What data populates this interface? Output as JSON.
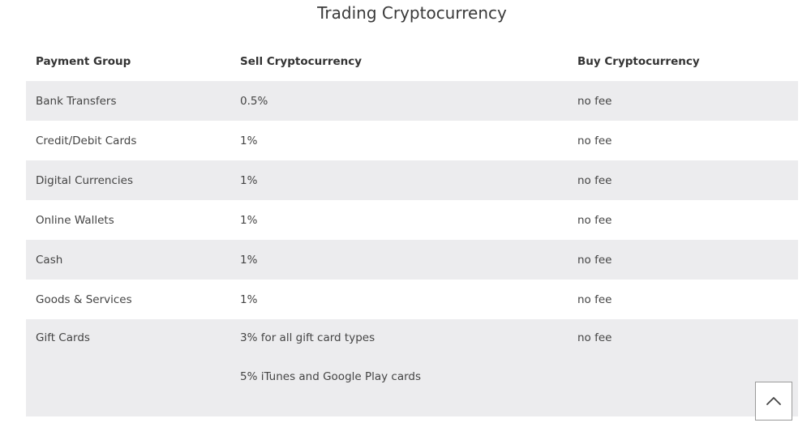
{
  "title": "Trading Cryptocurrency",
  "table": {
    "headers": [
      "Payment Group",
      "Sell Cryptocurrency",
      "Buy Cryptocurrency"
    ],
    "rows": [
      {
        "group": "Bank Transfers",
        "sell": [
          "0.5%"
        ],
        "buy": "no fee"
      },
      {
        "group": "Credit/Debit Cards",
        "sell": [
          "1%"
        ],
        "buy": "no fee"
      },
      {
        "group": "Digital Currencies",
        "sell": [
          "1%"
        ],
        "buy": "no fee"
      },
      {
        "group": "Online Wallets",
        "sell": [
          "1%"
        ],
        "buy": "no fee"
      },
      {
        "group": "Cash",
        "sell": [
          "1%"
        ],
        "buy": "no fee"
      },
      {
        "group": "Goods & Services",
        "sell": [
          "1%"
        ],
        "buy": "no fee"
      },
      {
        "group": "Gift Cards",
        "sell": [
          "3% for all gift card types",
          "5% iTunes and Google Play cards"
        ],
        "buy": "no fee"
      }
    ]
  },
  "scroll_top": {
    "icon": "chevron-up-icon"
  },
  "colors": {
    "row_shade": "#ececee",
    "text": "#444444"
  }
}
